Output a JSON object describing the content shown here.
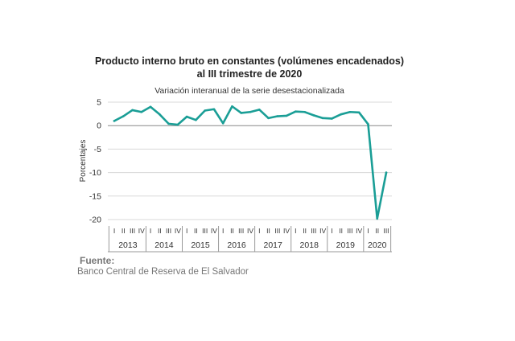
{
  "chart_data": {
    "type": "line",
    "title": "Producto interno bruto en constantes (volúmenes encadenados)",
    "title_line2": "al III trimestre de 2020",
    "subtitle": "Variación interanual de la serie desestacionalizada",
    "ylabel": "Porcentajes",
    "ylim": [
      -20,
      5
    ],
    "yticks": [
      "5",
      "0",
      "-5",
      "-10",
      "-15",
      "-20"
    ],
    "grid": true,
    "line_color": "#1a9e96",
    "quarters": [
      "I",
      "II",
      "III",
      "IV"
    ],
    "years": [
      {
        "label": "2013",
        "quarters": [
          "I",
          "II",
          "III",
          "IV"
        ]
      },
      {
        "label": "2014",
        "quarters": [
          "I",
          "II",
          "III",
          "IV"
        ]
      },
      {
        "label": "2015",
        "quarters": [
          "I",
          "II",
          "III",
          "IV"
        ]
      },
      {
        "label": "2016",
        "quarters": [
          "I",
          "II",
          "III",
          "IV"
        ]
      },
      {
        "label": "2017",
        "quarters": [
          "I",
          "II",
          "III",
          "IV"
        ]
      },
      {
        "label": "2018",
        "quarters": [
          "I",
          "II",
          "III",
          "IV"
        ]
      },
      {
        "label": "2019",
        "quarters": [
          "I",
          "II",
          "III",
          "IV"
        ]
      },
      {
        "label": "2020",
        "quarters": [
          "I",
          "II",
          "III"
        ]
      }
    ],
    "values": [
      1.0,
      2.0,
      3.3,
      2.9,
      4.0,
      2.4,
      0.4,
      0.2,
      1.9,
      1.2,
      3.2,
      3.5,
      0.5,
      4.1,
      2.7,
      2.9,
      3.4,
      1.6,
      2.0,
      2.1,
      3.0,
      2.9,
      2.2,
      1.6,
      1.5,
      2.4,
      2.9,
      2.8,
      0.3,
      -19.8,
      -10.0
    ]
  },
  "source": {
    "label": "Fuente:",
    "text": "Banco Central de Reserva de El Salvador"
  }
}
